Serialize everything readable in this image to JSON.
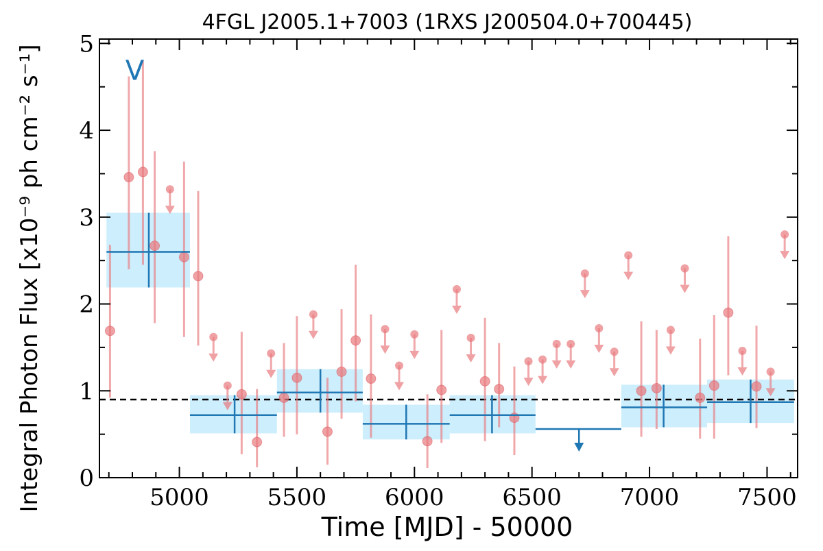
{
  "chart_data": {
    "type": "scatter",
    "title": "4FGL J2005.1+7003 (1RXS J200504.0+700445)",
    "xlabel": "Time [MJD] - 50000",
    "ylabel": "Integral Photon Flux [x10⁻⁹ ph cm⁻² s⁻¹]",
    "xlim": [
      4660,
      7630
    ],
    "ylim": [
      0,
      5.05
    ],
    "x_ticks": [
      "5000",
      "5500",
      "6000",
      "6500",
      "7000",
      "7500"
    ],
    "y_ticks": [
      "0",
      "1",
      "2",
      "3",
      "4",
      "5"
    ],
    "reference_line": {
      "y": 0.9,
      "style": "dashed",
      "color": "#000000"
    },
    "marker_label": "V",
    "marker_label_position": {
      "x": 4810,
      "y": 4.58
    },
    "colors": {
      "fine": "#e8797e",
      "coarse": "#1f77b4",
      "coarse_band": "#cdeefc"
    },
    "series": [
      {
        "color": "#e8797e",
        "points": [
          {
            "x": 4705,
            "y": 1.69,
            "lo": 0.92,
            "hi": 2.68
          },
          {
            "x": 4785,
            "y": 3.46,
            "lo": 2.4,
            "hi": 4.62
          },
          {
            "x": 4845,
            "y": 3.52,
            "lo": 2.45,
            "hi": 4.8
          },
          {
            "x": 4895,
            "y": 2.67,
            "lo": 1.78,
            "hi": 3.76
          },
          {
            "x": 5020,
            "y": 2.54,
            "lo": 1.62,
            "hi": 3.64
          },
          {
            "x": 5080,
            "y": 2.32,
            "lo": 1.52,
            "hi": 3.3
          },
          {
            "x": 5265,
            "y": 0.96,
            "lo": 0.27,
            "hi": 1.68
          },
          {
            "x": 5330,
            "y": 0.41,
            "lo": 0.12,
            "hi": 1.02
          },
          {
            "x": 5445,
            "y": 0.92,
            "lo": 0.47,
            "hi": 1.55
          },
          {
            "x": 5500,
            "y": 1.15,
            "lo": 0.5,
            "hi": 1.86
          },
          {
            "x": 5630,
            "y": 0.53,
            "lo": 0.15,
            "hi": 1.15
          },
          {
            "x": 5690,
            "y": 1.22,
            "lo": 0.68,
            "hi": 1.94
          },
          {
            "x": 5750,
            "y": 1.58,
            "lo": 0.88,
            "hi": 2.45
          },
          {
            "x": 5815,
            "y": 1.14,
            "lo": 0.46,
            "hi": 1.88
          },
          {
            "x": 6055,
            "y": 0.42,
            "lo": 0.11,
            "hi": 0.96
          },
          {
            "x": 6115,
            "y": 1.01,
            "lo": 0.4,
            "hi": 1.7
          },
          {
            "x": 6300,
            "y": 1.11,
            "lo": 0.42,
            "hi": 1.84
          },
          {
            "x": 6360,
            "y": 1.02,
            "lo": 0.58,
            "hi": 1.55
          },
          {
            "x": 6425,
            "y": 0.69,
            "lo": 0.26,
            "hi": 1.28
          },
          {
            "x": 6965,
            "y": 1.0,
            "lo": 0.47,
            "hi": 1.8
          },
          {
            "x": 7030,
            "y": 1.03,
            "lo": 0.56,
            "hi": 1.7
          },
          {
            "x": 7215,
            "y": 0.92,
            "lo": 0.45,
            "hi": 1.6
          },
          {
            "x": 7275,
            "y": 1.06,
            "lo": 0.45,
            "hi": 1.87
          },
          {
            "x": 7335,
            "y": 1.9,
            "lo": 1.18,
            "hi": 2.78
          },
          {
            "x": 7455,
            "y": 1.05,
            "lo": 0.57,
            "hi": 1.75
          }
        ],
        "upper_limits": [
          {
            "x": 4960,
            "y": 3.32
          },
          {
            "x": 5145,
            "y": 1.62
          },
          {
            "x": 5205,
            "y": 1.06
          },
          {
            "x": 5390,
            "y": 1.43
          },
          {
            "x": 5570,
            "y": 1.88
          },
          {
            "x": 5875,
            "y": 1.71
          },
          {
            "x": 5935,
            "y": 1.29
          },
          {
            "x": 6000,
            "y": 1.65
          },
          {
            "x": 6180,
            "y": 2.17
          },
          {
            "x": 6240,
            "y": 1.61
          },
          {
            "x": 6485,
            "y": 1.34
          },
          {
            "x": 6545,
            "y": 1.36
          },
          {
            "x": 6605,
            "y": 1.54
          },
          {
            "x": 6665,
            "y": 1.54
          },
          {
            "x": 6725,
            "y": 2.35
          },
          {
            "x": 6785,
            "y": 1.72
          },
          {
            "x": 6850,
            "y": 1.45
          },
          {
            "x": 6910,
            "y": 2.56
          },
          {
            "x": 7090,
            "y": 1.7
          },
          {
            "x": 7150,
            "y": 2.41
          },
          {
            "x": 7395,
            "y": 1.46
          },
          {
            "x": 7515,
            "y": 1.22
          },
          {
            "x": 7575,
            "y": 2.8
          }
        ]
      },
      {
        "color": "#1f77b4",
        "bins": [
          {
            "x": 4870,
            "x0": 4690,
            "x1": 5045,
            "y": 2.6,
            "lo": 2.19,
            "hi": 3.05,
            "band_lo": 2.19,
            "band_hi": 3.05
          },
          {
            "x": 5235,
            "x0": 5045,
            "x1": 5415,
            "y": 0.72,
            "lo": 0.51,
            "hi": 0.95,
            "band_lo": 0.51,
            "band_hi": 0.95
          },
          {
            "x": 5600,
            "x0": 5415,
            "x1": 5780,
            "y": 0.98,
            "lo": 0.75,
            "hi": 1.25,
            "band_lo": 0.75,
            "band_hi": 1.25
          },
          {
            "x": 5965,
            "x0": 5780,
            "x1": 6150,
            "y": 0.62,
            "lo": 0.44,
            "hi": 0.84,
            "band_lo": 0.44,
            "band_hi": 0.84
          },
          {
            "x": 6330,
            "x0": 6150,
            "x1": 6515,
            "y": 0.72,
            "lo": 0.51,
            "hi": 0.95,
            "band_lo": 0.51,
            "band_hi": 0.95
          },
          {
            "x": 7060,
            "x0": 6880,
            "x1": 7245,
            "y": 0.81,
            "lo": 0.58,
            "hi": 1.07,
            "band_lo": 0.58,
            "band_hi": 1.07
          },
          {
            "x": 7430,
            "x0": 7245,
            "x1": 7615,
            "y": 0.87,
            "lo": 0.63,
            "hi": 1.13,
            "band_lo": 0.63,
            "band_hi": 1.13
          }
        ],
        "upper_limits": [
          {
            "x": 6700,
            "x0": 6515,
            "x1": 6880,
            "y": 0.56
          }
        ]
      }
    ]
  }
}
